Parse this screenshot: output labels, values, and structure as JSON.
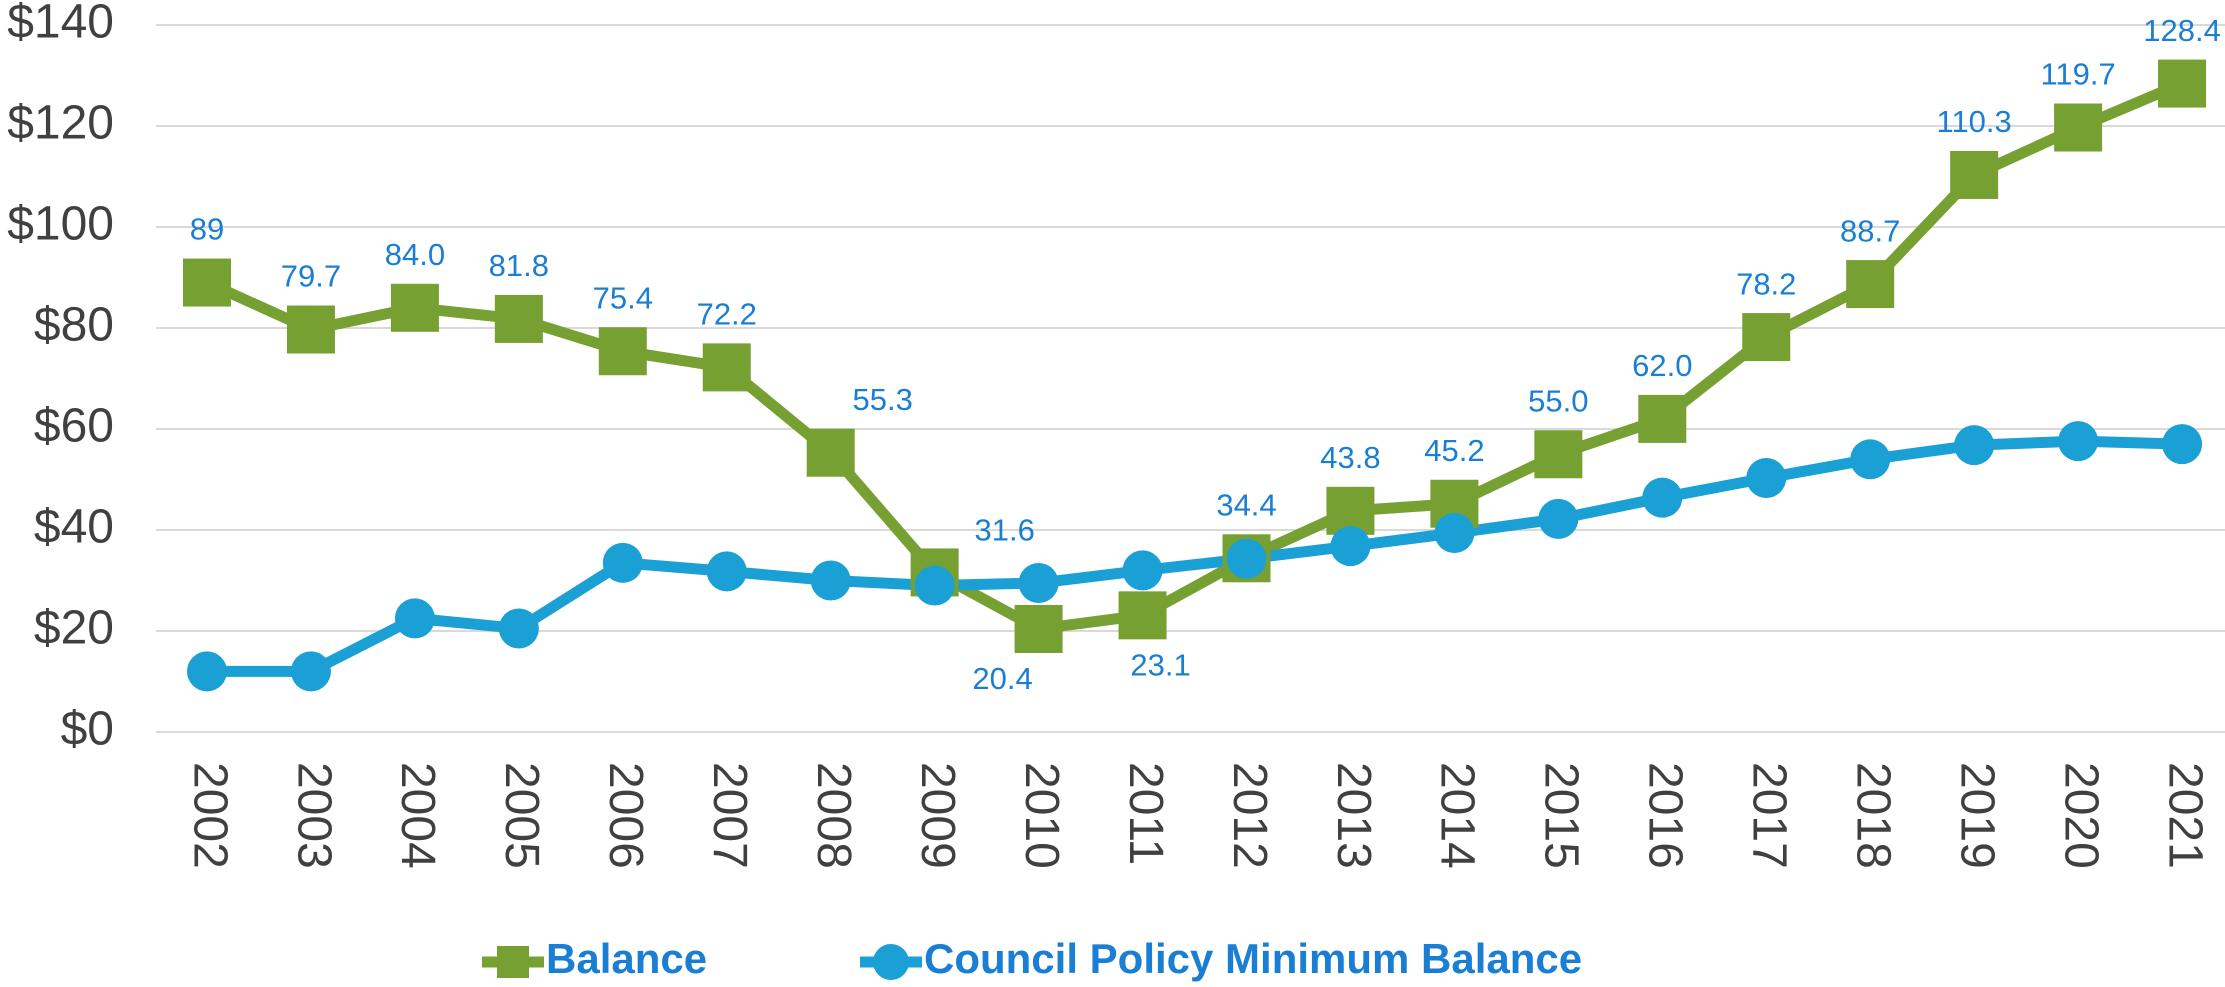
{
  "chart_data": {
    "type": "line",
    "categories": [
      "2002",
      "2003",
      "2004",
      "2005",
      "2006",
      "2007",
      "2008",
      "2009",
      "2010",
      "2011",
      "2012",
      "2013",
      "2014",
      "2015",
      "2016",
      "2017",
      "2018",
      "2019",
      "2020",
      "2021"
    ],
    "series": [
      {
        "name": "Balance",
        "color": "#77a033",
        "marker": "square",
        "values": [
          89,
          79.7,
          84.0,
          81.8,
          75.4,
          72.2,
          55.3,
          31.6,
          20.4,
          23.1,
          34.4,
          43.8,
          45.2,
          55.0,
          62.0,
          78.2,
          88.7,
          110.3,
          119.7,
          128.4
        ],
        "value_labels": [
          "89",
          "79.7",
          "84.0",
          "81.8",
          "75.4",
          "72.2",
          "55.3",
          "31.6",
          "20.4",
          "23.1",
          "34.4",
          "43.8",
          "45.2",
          "55.0",
          "62.0",
          "78.2",
          "88.7",
          "110.3",
          "119.7",
          "128.4"
        ]
      },
      {
        "name": "Council Policy Minimum Balance",
        "color": "#1aa0d4",
        "marker": "circle",
        "values": [
          12,
          12,
          22.5,
          20.5,
          33.5,
          31.8,
          30,
          29,
          29.5,
          32,
          34.3,
          36.8,
          39.4,
          42.2,
          46.4,
          50.3,
          54,
          56.8,
          57.6,
          57
        ]
      }
    ],
    "ylim": [
      0,
      140
    ],
    "yticks": [
      {
        "value": 0,
        "label": "$0"
      },
      {
        "value": 20,
        "label": "$20"
      },
      {
        "value": 40,
        "label": "$40"
      },
      {
        "value": 60,
        "label": "$60"
      },
      {
        "value": 80,
        "label": "$80"
      },
      {
        "value": 100,
        "label": "$100"
      },
      {
        "value": 120,
        "label": "$120"
      },
      {
        "value": 140,
        "label": "$140"
      }
    ],
    "grid": true,
    "legend": "bottom"
  }
}
